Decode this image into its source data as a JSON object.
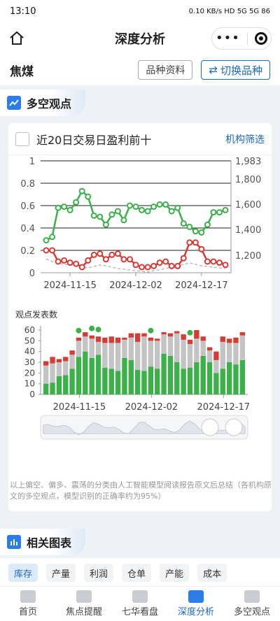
{
  "status": {
    "time": "13:10",
    "right": "0.10 KB/s  HD  5G  5G  86"
  },
  "header": {
    "title": "深度分析",
    "menu_dots": "•••"
  },
  "variety": {
    "name": "焦煤",
    "info_btn": "品种资料",
    "switch_btn": "切换品种"
  },
  "section1": {
    "title": "多空观点"
  },
  "filter": {
    "label": "近20日交易日盈利前十",
    "link": "机构筛选"
  },
  "chart_data": [
    {
      "type": "line",
      "x": [
        "2024-11-11",
        "2024-11-12",
        "2024-11-13",
        "2024-11-14",
        "2024-11-15",
        "2024-11-18",
        "2024-11-19",
        "2024-11-20",
        "2024-11-21",
        "2024-11-22",
        "2024-11-25",
        "2024-11-26",
        "2024-11-27",
        "2024-11-28",
        "2024-11-29",
        "2024-12-02",
        "2024-12-03",
        "2024-12-04",
        "2024-12-05",
        "2024-12-06",
        "2024-12-09",
        "2024-12-10",
        "2024-12-11",
        "2024-12-12",
        "2024-12-13",
        "2024-12-16",
        "2024-12-17",
        "2024-12-18",
        "2024-12-19",
        "2024-12-20",
        "2024-12-23"
      ],
      "x_ticks": [
        "2024-11-15",
        "2024-12-02",
        "2024-12-17"
      ],
      "y_left_ticks": [
        "0",
        "0.2",
        "0.4",
        "0.6",
        "0.8",
        "1"
      ],
      "y_right_ticks": [
        "1,200",
        "1,400",
        "1,600",
        "1,800",
        "1,983"
      ],
      "ylim_left": [
        0,
        1
      ],
      "series": [
        {
          "color": "#3cb14a",
          "values": [
            0.29,
            0.32,
            0.58,
            0.59,
            0.56,
            0.63,
            0.73,
            0.68,
            0.51,
            0.5,
            0.43,
            0.52,
            0.55,
            0.47,
            0.6,
            0.59,
            0.56,
            0.55,
            0.59,
            0.61,
            0.61,
            0.55,
            0.58,
            0.44,
            0.41,
            0.37,
            0.36,
            0.43,
            0.54,
            0.54,
            0.56
          ]
        },
        {
          "color": "#d83b34",
          "values": [
            0.2,
            0.2,
            0.1,
            0.11,
            0.09,
            0.08,
            0.05,
            0.11,
            0.16,
            0.17,
            0.12,
            0.16,
            0.17,
            0.12,
            0.12,
            0.07,
            0.05,
            0.05,
            0.06,
            0.09,
            0.1,
            0.06,
            0.06,
            0.13,
            0.27,
            0.27,
            0.21,
            0.1,
            0.1,
            0.09,
            0.07
          ]
        }
      ],
      "price_dashed": [
        1280,
        1260,
        1250,
        1240,
        1235,
        1230,
        1220,
        1215,
        1225,
        1235,
        1230,
        1220,
        1210,
        1205,
        1200,
        1195,
        1190,
        1185,
        1195,
        1200,
        1210,
        1220,
        1230,
        1240,
        1250,
        1240,
        1230,
        1225,
        1220,
        1215,
        1210
      ]
    },
    {
      "type": "bar",
      "title": "观点发表数",
      "y_ticks": [
        "0",
        "10",
        "20",
        "30",
        "40",
        "50",
        "60"
      ],
      "ylim": [
        0,
        65
      ],
      "x_ticks": [
        "2024-11-15",
        "2024-12-02",
        "2024-12-17"
      ],
      "series_colors": {
        "bull": "#3cb14a",
        "neutral": "#c4c4c4",
        "bear": "#d83b34"
      },
      "bull": [
        10,
        11,
        17,
        18,
        24,
        35,
        40,
        34,
        37,
        25,
        24,
        22,
        34,
        32,
        23,
        22,
        26,
        24,
        38,
        36,
        30,
        24,
        25,
        30,
        36,
        30,
        20,
        24,
        30,
        28,
        32
      ],
      "neutral": [
        17,
        18,
        13,
        13,
        13,
        15,
        14,
        18,
        12,
        23,
        24,
        26,
        17,
        21,
        26,
        32,
        24,
        26,
        18,
        18,
        27,
        27,
        22,
        22,
        14,
        11,
        12,
        25,
        18,
        20,
        23
      ],
      "bear": [
        4,
        6,
        3,
        4,
        4,
        3,
        4,
        3,
        5,
        5,
        6,
        5,
        2,
        4,
        8,
        3,
        3,
        2,
        2,
        3,
        2,
        5,
        4,
        8,
        4,
        3,
        8,
        5,
        4,
        5,
        3
      ],
      "sentiment_marker_idx": [
        5,
        7,
        8,
        16,
        22
      ]
    }
  ],
  "footnote": "以上偏空、偏多、震荡的分类由人工智能模型阅读报告原文后总结（各机构原文的多空观点，模型识别的正确率约为95%）",
  "section2": {
    "title": "相关图表"
  },
  "tags": [
    "库存",
    "产量",
    "利润",
    "仓单",
    "产能",
    "成本"
  ],
  "tabbar": [
    {
      "label": "首页",
      "icon": "home-icon"
    },
    {
      "label": "焦点提醒",
      "icon": "bell-icon"
    },
    {
      "label": "七华看盘",
      "icon": "chart-line-icon"
    },
    {
      "label": "深度分析",
      "icon": "bar-chart-icon",
      "active": true
    },
    {
      "label": "多空观点",
      "icon": "document-icon"
    }
  ]
}
